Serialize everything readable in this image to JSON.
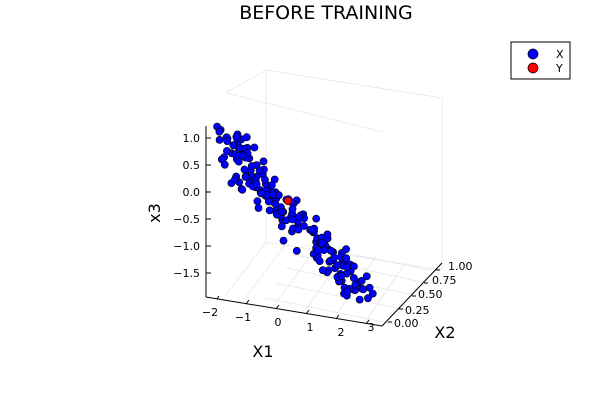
{
  "chart_data": {
    "type": "scatter",
    "title": "BEFORE TRAINING",
    "xlabel": "X1",
    "ylabel": "X2",
    "zlabel": "x3",
    "x_ticks": [
      "−2",
      "−1",
      "0",
      "1",
      "2",
      "3"
    ],
    "y_ticks": [
      "0.00",
      "0.25",
      "0.50",
      "0.75",
      "1.00"
    ],
    "z_ticks": [
      "1.0",
      "0.5",
      "0.0",
      "−0.5",
      "−1.0",
      "−1.5"
    ],
    "xlim": [
      -2.3,
      3.0
    ],
    "ylim": [
      0,
      1
    ],
    "zlim": [
      -1.9,
      1.3
    ],
    "grid": true,
    "legend_position": "top-right",
    "series": [
      {
        "name": "X",
        "color": "#0000ff",
        "points": []
      },
      {
        "name": "Y",
        "color": "#ff0000",
        "points": [
          {
            "x": 0.2,
            "y": 0.0,
            "z": 0.0
          }
        ]
      }
    ]
  }
}
